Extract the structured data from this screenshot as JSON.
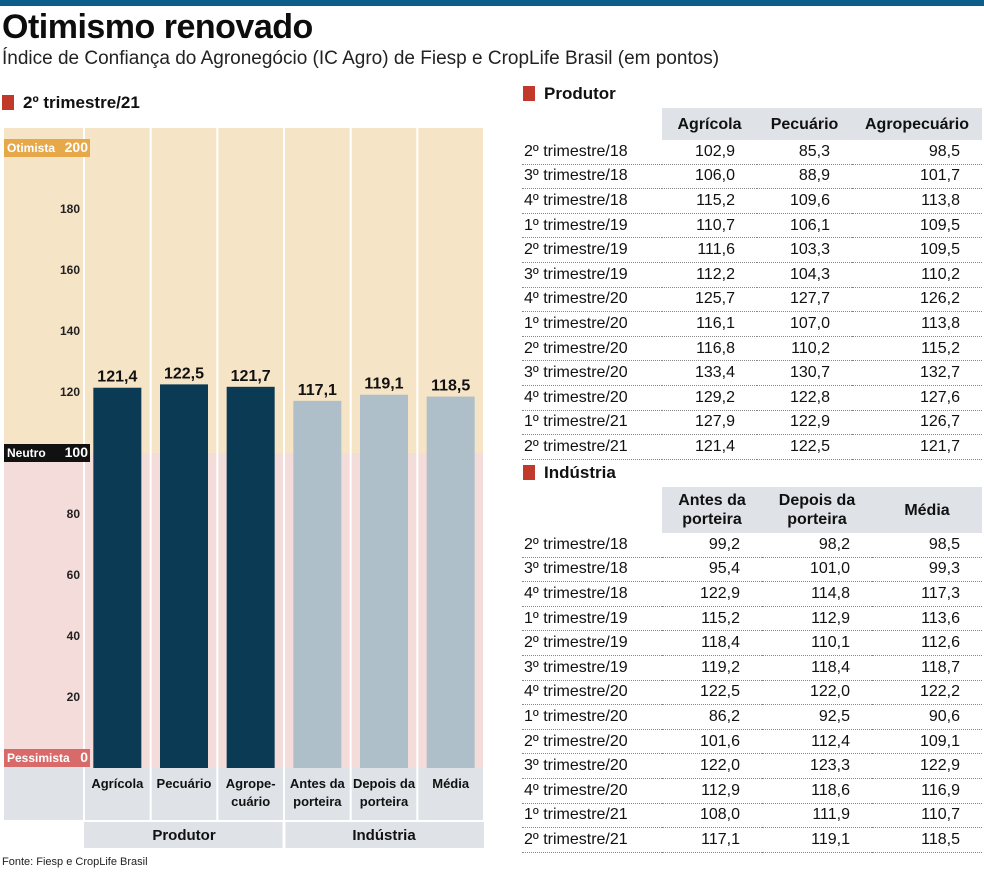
{
  "title": "Otimismo renovado",
  "subtitle": "Índice de Confiança do Agronegócio (IC Agro) de Fiesp e CropLife Brasil (em pontos)",
  "source": "Fonte: Fiesp e CropLife Brasil",
  "colors": {
    "accent": "#c0392b",
    "topbar": "#0b5d8a",
    "produtor_bar": "#0b3a55",
    "industria_bar": "#aebfca",
    "optimist_zone": "#f6e4c6",
    "pessimist_zone": "#f3dcd9",
    "label_bg": "#dfe3e8"
  },
  "chart_data": {
    "type": "bar",
    "section_title": "2º trimestre/21",
    "categories": [
      "Agrícola",
      "Pecuário",
      "Agropecuário",
      "Antes da porteira",
      "Depois da porteira",
      "Média"
    ],
    "category_labels": [
      [
        "Agrícola"
      ],
      [
        "Pecuário"
      ],
      [
        "Agrope-",
        "cuário"
      ],
      [
        "Antes da",
        "porteira"
      ],
      [
        "Depois da",
        "porteira"
      ],
      [
        "Média"
      ]
    ],
    "values": [
      121.4,
      122.5,
      121.7,
      117.1,
      119.1,
      118.5
    ],
    "value_labels": [
      "121,4",
      "122,5",
      "121,7",
      "117,1",
      "119,1",
      "118,5"
    ],
    "groups": [
      {
        "name": "Produtor",
        "color": "#0b3a55",
        "categories": [
          "Agrícola",
          "Pecuário",
          "Agropecuário"
        ]
      },
      {
        "name": "Indústria",
        "color": "#aebfca",
        "categories": [
          "Antes da porteira",
          "Depois da porteira",
          "Média"
        ]
      }
    ],
    "ylim": [
      0,
      200
    ],
    "yticks": [
      20,
      40,
      60,
      80,
      120,
      140,
      160,
      180
    ],
    "zones": [
      {
        "label": "Otimista",
        "value": 200,
        "display": "200"
      },
      {
        "label": "Neutro",
        "value": 100,
        "display": "100"
      },
      {
        "label": "Pessimista",
        "value": 0,
        "display": "0"
      }
    ],
    "xlabel": "",
    "ylabel": "",
    "grid": false
  },
  "tables": [
    {
      "title": "Produtor",
      "columns": [
        "",
        "Agrícola",
        "Pecuário",
        "Agropecuário"
      ],
      "rows": [
        [
          "2º trimestre/18",
          "102,9",
          "85,3",
          "98,5"
        ],
        [
          "3º trimestre/18",
          "106,0",
          "88,9",
          "101,7"
        ],
        [
          "4º trimestre/18",
          "115,2",
          "109,6",
          "113,8"
        ],
        [
          "1º trimestre/19",
          "110,7",
          "106,1",
          "109,5"
        ],
        [
          "2º trimestre/19",
          "111,6",
          "103,3",
          "109,5"
        ],
        [
          "3º trimestre/19",
          "112,2",
          "104,3",
          "110,2"
        ],
        [
          "4º trimestre/20",
          "125,7",
          "127,7",
          "126,2"
        ],
        [
          "1º trimestre/20",
          "116,1",
          "107,0",
          "113,8"
        ],
        [
          "2º trimestre/20",
          "116,8",
          "110,2",
          "115,2"
        ],
        [
          "3º trimestre/20",
          "133,4",
          "130,7",
          "132,7"
        ],
        [
          "4º trimestre/20",
          "129,2",
          "122,8",
          "127,6"
        ],
        [
          "1º trimestre/21",
          "127,9",
          "122,9",
          "126,7"
        ],
        [
          "2º trimestre/21",
          "121,4",
          "122,5",
          "121,7"
        ]
      ]
    },
    {
      "title": "Indústria",
      "columns": [
        "",
        "Antes da porteira",
        "Depois da porteira",
        "Média"
      ],
      "rows": [
        [
          "2º trimestre/18",
          "99,2",
          "98,2",
          "98,5"
        ],
        [
          "3º trimestre/18",
          "95,4",
          "101,0",
          "99,3"
        ],
        [
          "4º trimestre/18",
          "122,9",
          "114,8",
          "117,3"
        ],
        [
          "1º trimestre/19",
          "115,2",
          "112,9",
          "113,6"
        ],
        [
          "2º trimestre/19",
          "118,4",
          "110,1",
          "112,6"
        ],
        [
          "3º trimestre/19",
          "119,2",
          "118,4",
          "118,7"
        ],
        [
          "4º trimestre/20",
          "122,5",
          "122,0",
          "122,2"
        ],
        [
          "1º trimestre/20",
          "86,2",
          "92,5",
          "90,6"
        ],
        [
          "2º trimestre/20",
          "101,6",
          "112,4",
          "109,1"
        ],
        [
          "3º trimestre/20",
          "122,0",
          "123,3",
          "122,9"
        ],
        [
          "4º trimestre/20",
          "112,9",
          "118,6",
          "116,9"
        ],
        [
          "1º trimestre/21",
          "108,0",
          "111,9",
          "110,7"
        ],
        [
          "2º trimestre/21",
          "117,1",
          "119,1",
          "118,5"
        ]
      ]
    }
  ]
}
